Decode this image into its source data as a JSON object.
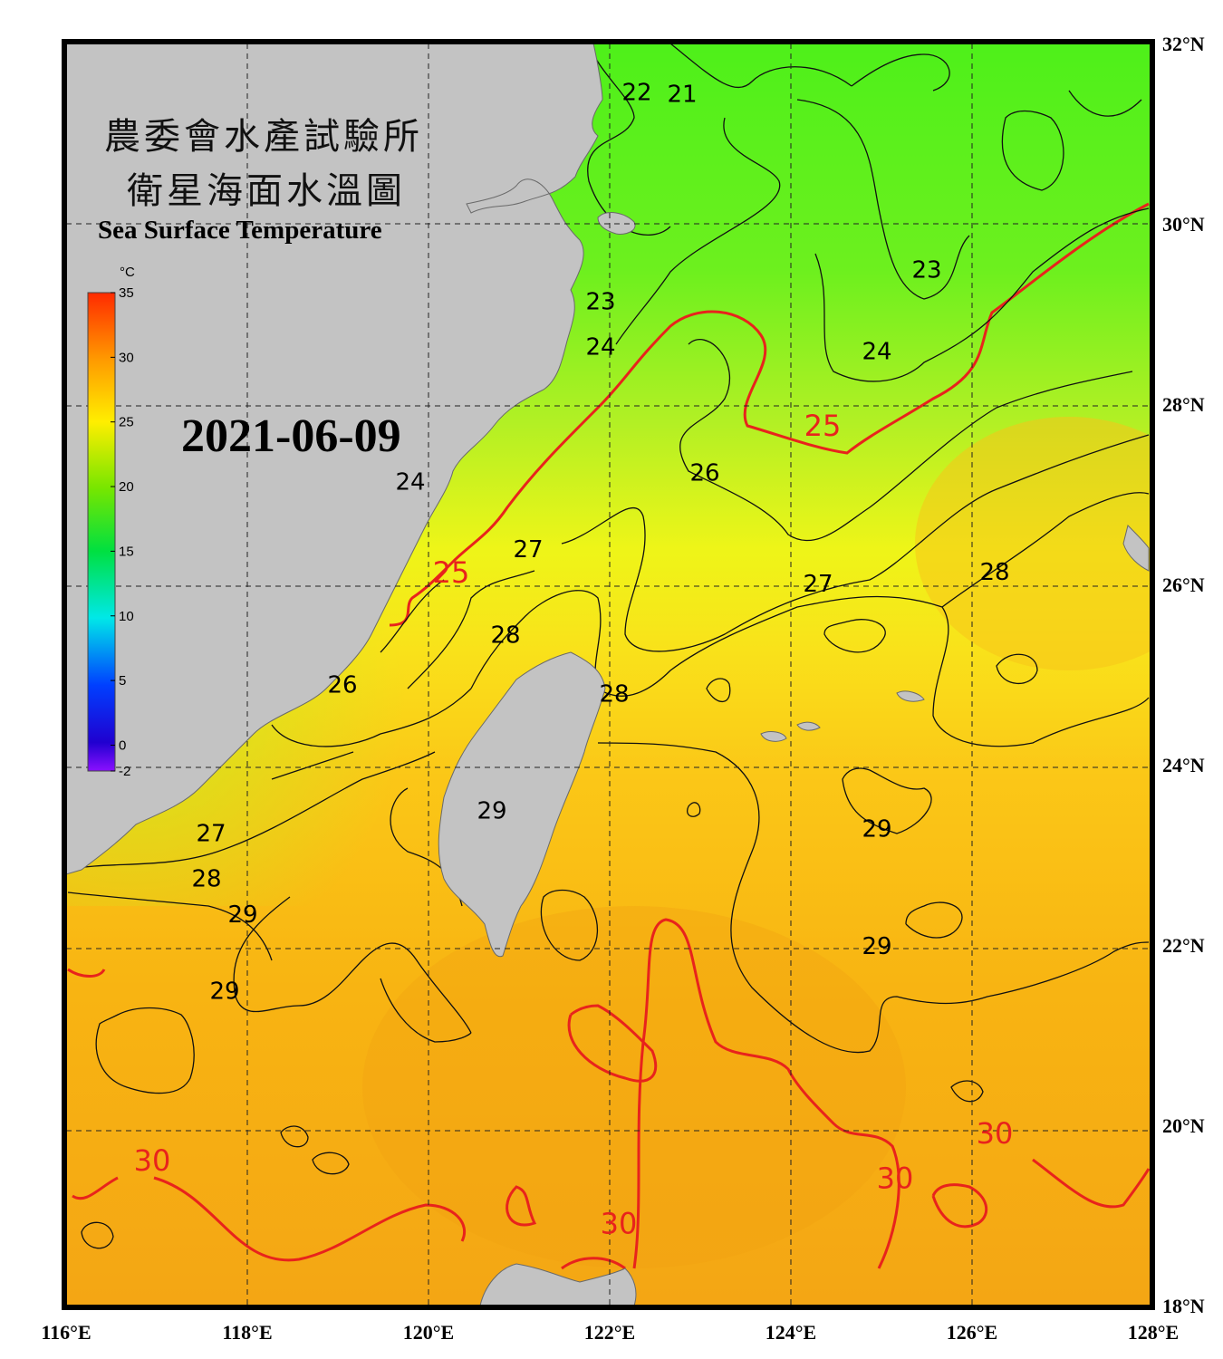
{
  "titles": {
    "line1": "農委會水產試驗所",
    "line2": "衛星海面水溫圖",
    "english": "Sea Surface Temperature",
    "date": "2021-06-09"
  },
  "colorbar": {
    "unit": "°C",
    "ticks": [
      "35",
      "30",
      "25",
      "20",
      "15",
      "10",
      "5",
      "0",
      "-2"
    ],
    "range": [
      -2,
      35
    ]
  },
  "axes": {
    "longitude_ticks": [
      "116°E",
      "118°E",
      "120°E",
      "122°E",
      "124°E",
      "126°E",
      "128°E"
    ],
    "latitude_ticks": [
      "32°N",
      "30°N",
      "28°N",
      "26°N",
      "24°N",
      "22°N",
      "20°N",
      "18°N"
    ],
    "lon_range": [
      116,
      128
    ],
    "lat_range": [
      18,
      32
    ],
    "grid": "dashed"
  },
  "contour_labels": [
    {
      "text": "22",
      "lon": 122.3,
      "lat": 31.37,
      "highlight": false
    },
    {
      "text": "21",
      "lon": 122.8,
      "lat": 31.35,
      "highlight": false
    },
    {
      "text": "23",
      "lon": 125.5,
      "lat": 29.4,
      "highlight": false
    },
    {
      "text": "23",
      "lon": 121.9,
      "lat": 29.05,
      "highlight": false
    },
    {
      "text": "24",
      "lon": 121.9,
      "lat": 28.55,
      "highlight": false
    },
    {
      "text": "24",
      "lon": 124.95,
      "lat": 28.5,
      "highlight": false
    },
    {
      "text": "25",
      "lon": 124.35,
      "lat": 27.65,
      "highlight": true
    },
    {
      "text": "26",
      "lon": 123.05,
      "lat": 27.15,
      "highlight": false
    },
    {
      "text": "24",
      "lon": 119.8,
      "lat": 27.05,
      "highlight": false
    },
    {
      "text": "27",
      "lon": 121.1,
      "lat": 26.3,
      "highlight": false
    },
    {
      "text": "25",
      "lon": 120.25,
      "lat": 26.02,
      "highlight": true
    },
    {
      "text": "27",
      "lon": 124.3,
      "lat": 25.92,
      "highlight": false
    },
    {
      "text": "28",
      "lon": 126.25,
      "lat": 26.05,
      "highlight": false
    },
    {
      "text": "28",
      "lon": 120.85,
      "lat": 25.35,
      "highlight": false
    },
    {
      "text": "26",
      "lon": 119.05,
      "lat": 24.8,
      "highlight": false
    },
    {
      "text": "28",
      "lon": 122.05,
      "lat": 24.7,
      "highlight": false
    },
    {
      "text": "29",
      "lon": 120.7,
      "lat": 23.4,
      "highlight": false
    },
    {
      "text": "29",
      "lon": 124.95,
      "lat": 23.2,
      "highlight": false
    },
    {
      "text": "27",
      "lon": 117.6,
      "lat": 23.15,
      "highlight": false
    },
    {
      "text": "28",
      "lon": 117.55,
      "lat": 22.65,
      "highlight": false
    },
    {
      "text": "29",
      "lon": 117.95,
      "lat": 22.25,
      "highlight": false
    },
    {
      "text": "29",
      "lon": 124.95,
      "lat": 21.9,
      "highlight": false
    },
    {
      "text": "29",
      "lon": 117.75,
      "lat": 21.4,
      "highlight": false
    },
    {
      "text": "30",
      "lon": 116.95,
      "lat": 19.5,
      "highlight": true
    },
    {
      "text": "30",
      "lon": 126.25,
      "lat": 19.8,
      "highlight": true
    },
    {
      "text": "30",
      "lon": 125.15,
      "lat": 19.3,
      "highlight": true
    },
    {
      "text": "30",
      "lon": 122.1,
      "lat": 18.8,
      "highlight": true
    }
  ],
  "colors": {
    "land": "#c3c3c3",
    "contour": "#000000",
    "highlight_contour": "#e8231c",
    "frame": "#000000"
  }
}
